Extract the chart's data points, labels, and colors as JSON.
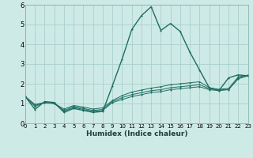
{
  "xlabel": "Humidex (Indice chaleur)",
  "bg_color": "#ceeae6",
  "grid_color": "#aacfca",
  "line_color": "#1e6e62",
  "x": [
    0,
    1,
    2,
    3,
    4,
    5,
    6,
    7,
    8,
    9,
    10,
    11,
    12,
    13,
    14,
    15,
    16,
    17,
    18,
    19,
    20,
    21,
    22,
    23
  ],
  "series": [
    [
      1.35,
      0.7,
      1.1,
      1.05,
      0.55,
      0.75,
      0.65,
      0.55,
      0.6,
      1.9,
      3.25,
      4.75,
      5.45,
      5.9,
      4.7,
      5.05,
      4.65,
      3.6,
      2.7,
      1.8,
      1.65,
      2.3,
      2.45,
      2.4
    ],
    [
      1.35,
      0.85,
      1.05,
      1.0,
      0.6,
      0.8,
      0.7,
      0.6,
      0.65,
      1.05,
      1.2,
      1.35,
      1.45,
      1.55,
      1.6,
      1.7,
      1.75,
      1.8,
      1.85,
      1.7,
      1.65,
      1.7,
      2.25,
      2.4
    ],
    [
      1.35,
      0.9,
      1.05,
      1.0,
      0.65,
      0.85,
      0.75,
      0.65,
      0.7,
      1.1,
      1.3,
      1.45,
      1.55,
      1.65,
      1.7,
      1.8,
      1.85,
      1.9,
      1.95,
      1.75,
      1.68,
      1.72,
      2.3,
      2.42
    ],
    [
      1.35,
      0.95,
      1.05,
      1.0,
      0.72,
      0.9,
      0.82,
      0.72,
      0.78,
      1.15,
      1.4,
      1.58,
      1.68,
      1.78,
      1.85,
      1.95,
      2.0,
      2.05,
      2.1,
      1.8,
      1.72,
      1.76,
      2.35,
      2.44
    ]
  ],
  "ylim": [
    0,
    6
  ],
  "xlim": [
    0,
    23
  ],
  "yticks": [
    0,
    1,
    2,
    3,
    4,
    5,
    6
  ],
  "xticks": [
    0,
    1,
    2,
    3,
    4,
    5,
    6,
    7,
    8,
    9,
    10,
    11,
    12,
    13,
    14,
    15,
    16,
    17,
    18,
    19,
    20,
    21,
    22,
    23
  ]
}
